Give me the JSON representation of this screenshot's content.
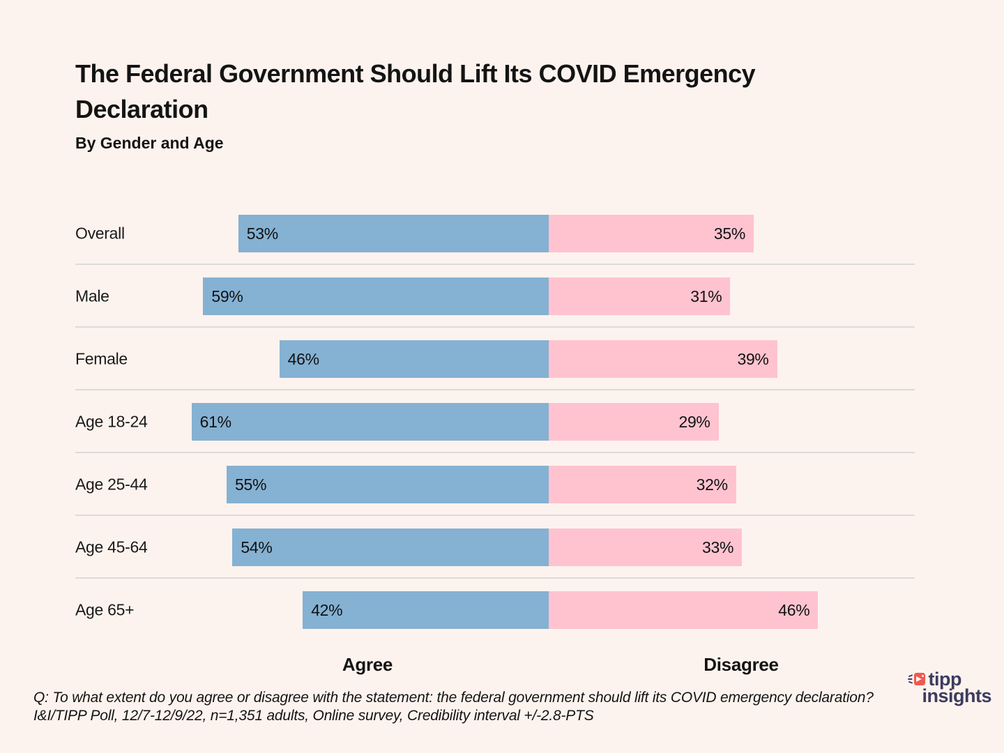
{
  "page": {
    "background": "#fdf3ee",
    "divider_color": "#dddad7"
  },
  "chart_data": {
    "type": "bar",
    "orientation": "horizontal-diverging",
    "title": "The Federal Government Should Lift Its COVID Emergency Declaration",
    "subtitle": "By Gender and Age",
    "categories": [
      "Overall",
      "Male",
      "Female",
      "Age 18-24",
      "Age 25-44",
      "Age 45-64",
      "Age 65+"
    ],
    "series": [
      {
        "name": "Agree",
        "color": "#85b1d3",
        "values": [
          53,
          59,
          46,
          61,
          55,
          54,
          42
        ]
      },
      {
        "name": "Disagree",
        "color": "#ffc3d0",
        "values": [
          35,
          31,
          39,
          29,
          32,
          33,
          46
        ]
      }
    ],
    "value_suffix": "%",
    "value_labels": [
      "53%",
      "59%",
      "46%",
      "61%",
      "55%",
      "54%",
      "42%",
      "35%",
      "31%",
      "39%",
      "29%",
      "32%",
      "33%",
      "46%"
    ],
    "legend": [
      "Agree",
      "Disagree"
    ],
    "legend_position": "bottom",
    "grid": false,
    "axis_center_percent": 0
  },
  "footer": {
    "text": "Q: To what extent do you agree or disagree with the statement: the federal government should lift its COVID emergency declaration? I&I/TIPP Poll, 12/7-12/9/22, n=1,351 adults, Online survey, Credibility interval +/-2.8-PTS"
  },
  "logo": {
    "brand_top": "tipp",
    "brand_bottom": "insights",
    "icon": "tipp-megaphone-icon",
    "icon_color": "#ee5a4f",
    "text_color": "#3d3c5e"
  }
}
